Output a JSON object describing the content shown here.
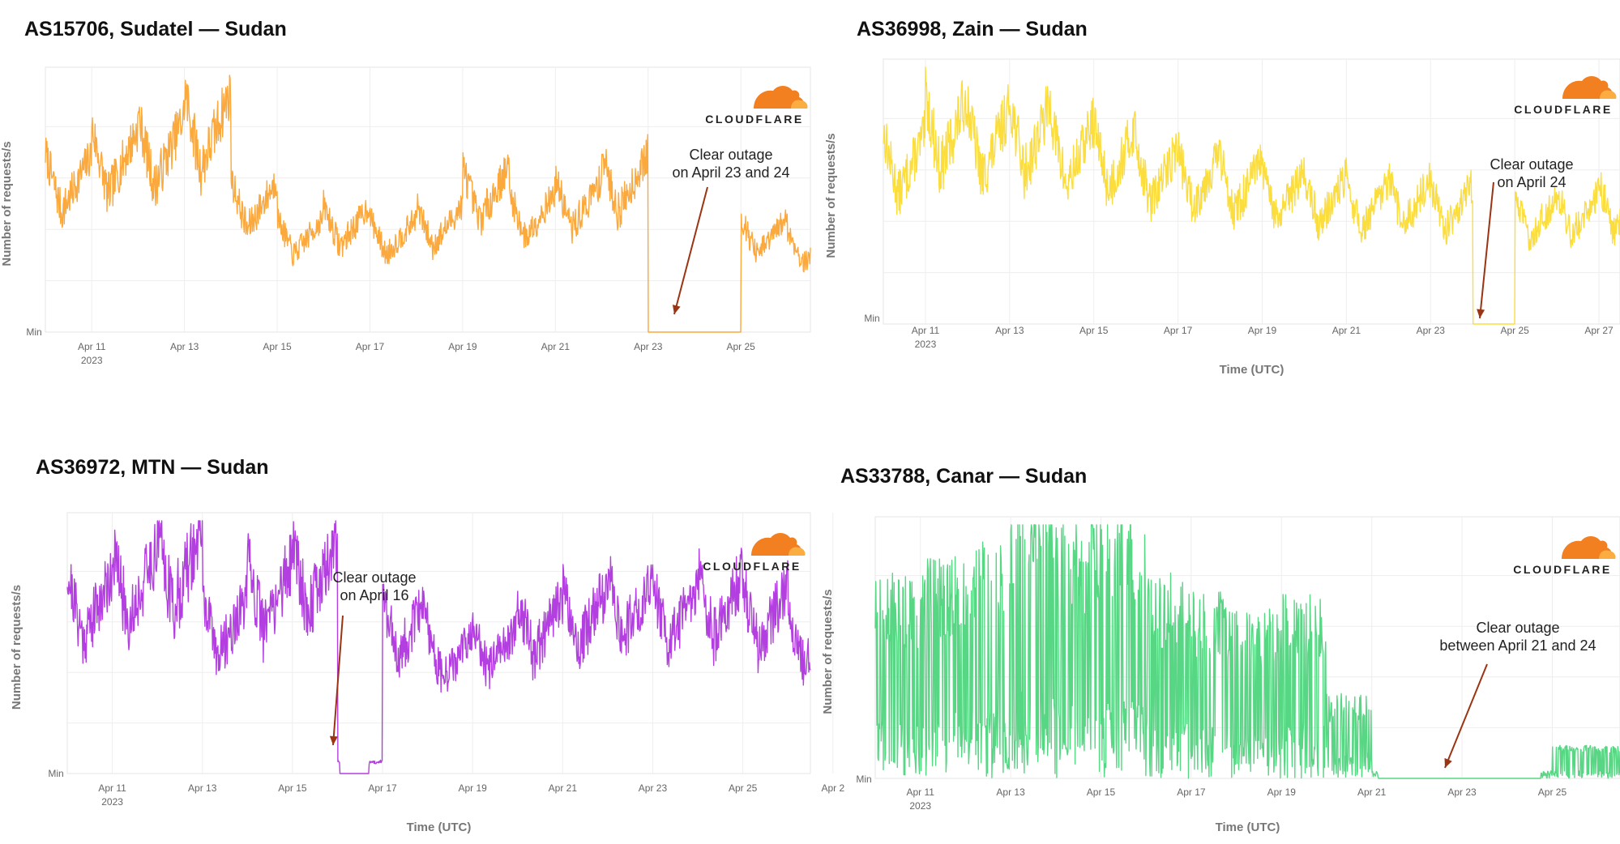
{
  "brand": {
    "logo_text": "CLOUDFLARE",
    "logo_color_dark": "#F38020",
    "logo_color_light": "#FBAD41"
  },
  "common": {
    "y_min_label": "Min",
    "x_axis_title": "Time (UTC)",
    "y_axis_title": "Number of requests/s",
    "year_label": "2023"
  },
  "chart_data": [
    {
      "type": "line",
      "title": "AS15706, Sudatel — Sudan",
      "color": "#FBA83C",
      "ylabel": "Number of requests/s",
      "xlabel": "",
      "x_range": [
        "Apr 10",
        "Apr 26 12:00"
      ],
      "x_ticks": [
        "Apr 11",
        "Apr 13",
        "Apr 15",
        "Apr 17",
        "Apr 19",
        "Apr 21",
        "Apr 23",
        "Apr 25"
      ],
      "y_tick_labels": [
        "Min"
      ],
      "ylim": [
        0,
        100
      ],
      "grid": true,
      "annotation": {
        "lines": [
          "Clear outage",
          "on April 23 and 24"
        ]
      },
      "series": [
        {
          "x": [
            "Apr 10",
            "Apr 11",
            "Apr 12",
            "Apr 13",
            "Apr 14",
            "Apr 15",
            "Apr 16",
            "Apr 17",
            "Apr 18",
            "Apr 19",
            "Apr 20",
            "Apr 21",
            "Apr 22",
            "Apr 23",
            "Apr 24",
            "Apr 25",
            "Apr 26"
          ],
          "values": [
            70,
            80,
            85,
            95,
            60,
            45,
            50,
            45,
            50,
            65,
            55,
            60,
            70,
            0,
            0,
            45,
            40
          ]
        }
      ]
    },
    {
      "type": "line",
      "title": "AS36998, Zain — Sudan",
      "color": "#FCDD3E",
      "ylabel": "Number of requests/s",
      "xlabel": "Time (UTC)",
      "x_range": [
        "Apr 10",
        "Apr 27 12:00"
      ],
      "x_ticks": [
        "Apr 11",
        "Apr 13",
        "Apr 15",
        "Apr 17",
        "Apr 19",
        "Apr 21",
        "Apr 23",
        "Apr 25",
        "Apr 27"
      ],
      "y_tick_labels": [
        "Min"
      ],
      "ylim": [
        0,
        100
      ],
      "grid": true,
      "annotation": {
        "lines": [
          "Clear outage",
          "on April 24"
        ]
      },
      "series": [
        {
          "x": [
            "Apr 10",
            "Apr 11",
            "Apr 12",
            "Apr 13",
            "Apr 14",
            "Apr 15",
            "Apr 16",
            "Apr 17",
            "Apr 18",
            "Apr 19",
            "Apr 20",
            "Apr 21",
            "Apr 22",
            "Apr 23",
            "Apr 24",
            "Apr 25",
            "Apr 26",
            "Apr 27"
          ],
          "values": [
            75,
            90,
            85,
            88,
            80,
            78,
            70,
            68,
            65,
            60,
            58,
            55,
            57,
            55,
            0,
            50,
            52,
            55
          ]
        }
      ]
    },
    {
      "type": "line",
      "title": "AS36972, MTN — Sudan",
      "color": "#B43FE0",
      "ylabel": "Number of requests/s",
      "xlabel": "Time (UTC)",
      "x_range": [
        "Apr 10",
        "Apr 26 12:00"
      ],
      "x_ticks": [
        "Apr 11",
        "Apr 13",
        "Apr 15",
        "Apr 17",
        "Apr 19",
        "Apr 21",
        "Apr 23",
        "Apr 25",
        "Apr 2"
      ],
      "y_tick_labels": [
        "Min"
      ],
      "ylim": [
        0,
        100
      ],
      "grid": true,
      "annotation": {
        "lines": [
          "Clear outage",
          "on April 16"
        ]
      },
      "series": [
        {
          "x": [
            "Apr 10",
            "Apr 11",
            "Apr 12",
            "Apr 13",
            "Apr 14",
            "Apr 15",
            "Apr 16",
            "Apr 17",
            "Apr 18",
            "Apr 19",
            "Apr 20",
            "Apr 21",
            "Apr 22",
            "Apr 23",
            "Apr 24",
            "Apr 25",
            "Apr 26"
          ],
          "values": [
            80,
            90,
            98,
            70,
            85,
            95,
            5,
            70,
            55,
            60,
            70,
            75,
            80,
            75,
            80,
            75,
            65
          ]
        }
      ]
    },
    {
      "type": "line",
      "title": "AS33788, Canar — Sudan",
      "color": "#57D684",
      "ylabel": "Number of requests/s",
      "xlabel": "Time (UTC)",
      "x_range": [
        "Apr 10",
        "Apr 26 12:00"
      ],
      "x_ticks": [
        "Apr 11",
        "Apr 13",
        "Apr 15",
        "Apr 17",
        "Apr 19",
        "Apr 21",
        "Apr 23",
        "Apr 25"
      ],
      "y_tick_labels": [
        "Min"
      ],
      "ylim": [
        0,
        100
      ],
      "grid": true,
      "annotation": {
        "lines": [
          "Clear outage",
          "between April 21 and 24"
        ]
      },
      "series": [
        {
          "x": [
            "Apr 10",
            "Apr 11",
            "Apr 12",
            "Apr 13",
            "Apr 14",
            "Apr 15",
            "Apr 16",
            "Apr 17",
            "Apr 18",
            "Apr 19",
            "Apr 20",
            "Apr 21",
            "Apr 22",
            "Apr 23",
            "Apr 24",
            "Apr 25",
            "Apr 26"
          ],
          "values": [
            60,
            65,
            70,
            90,
            75,
            80,
            60,
            55,
            50,
            55,
            25,
            0,
            0,
            0,
            0,
            10,
            10
          ]
        }
      ]
    }
  ]
}
